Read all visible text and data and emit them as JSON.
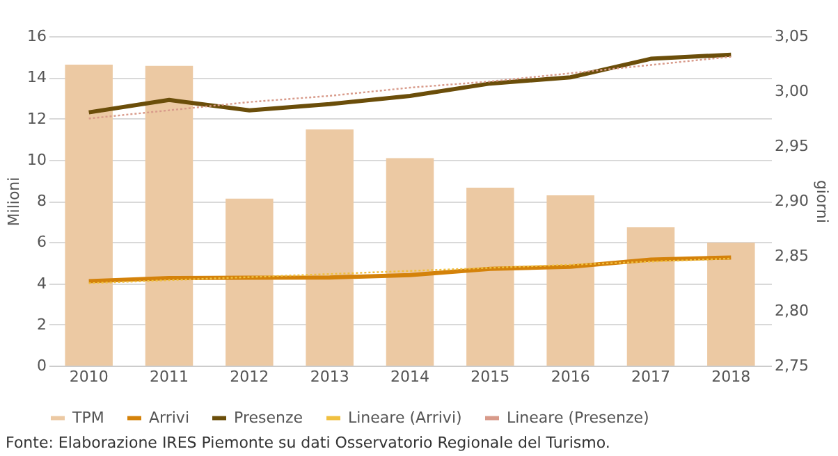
{
  "chart_data": {
    "type": "bar",
    "categories": [
      "2010",
      "2011",
      "2012",
      "2013",
      "2014",
      "2015",
      "2016",
      "2017",
      "2018"
    ],
    "series": [
      {
        "name": "TPM",
        "axis": "y2",
        "color": "#ecc9a3",
        "values": [
          3.024,
          3.023,
          2.902,
          2.965,
          2.939,
          2.912,
          2.905,
          2.876,
          2.862
        ]
      },
      {
        "name": "Arrivi",
        "type": "line",
        "color": "#d4820a",
        "line_style": "solid",
        "values": [
          4.1,
          4.25,
          4.27,
          4.28,
          4.4,
          4.7,
          4.8,
          5.15,
          5.25
        ]
      },
      {
        "name": "Presenze",
        "type": "line",
        "color": "#6b4e0a",
        "line_style": "solid",
        "values": [
          12.3,
          12.9,
          12.4,
          12.7,
          13.1,
          13.7,
          14.0,
          14.9,
          15.1
        ]
      },
      {
        "name": "Lineare (Arrivi)",
        "type": "line",
        "color": "#f0c040",
        "line_style": "dotted",
        "values": [
          4.0,
          4.15,
          4.3,
          4.45,
          4.6,
          4.75,
          4.9,
          5.05,
          5.2
        ]
      },
      {
        "name": "Lineare (Presenze)",
        "type": "line",
        "color": "#d89a8a",
        "line_style": "dotted",
        "values": [
          12.0,
          12.4,
          12.8,
          13.1,
          13.5,
          13.8,
          14.2,
          14.6,
          15.0
        ]
      }
    ],
    "ylabel": "Milioni",
    "y2label": "giorni",
    "ylim": [
      0,
      16
    ],
    "yticks": [
      0,
      2,
      4,
      6,
      8,
      10,
      12,
      14,
      16
    ],
    "y2lim": [
      2.75,
      3.05
    ],
    "y2ticks": [
      {
        "value": 2.75,
        "label": "2,75"
      },
      {
        "value": 2.8,
        "label": "2,80"
      },
      {
        "value": 2.85,
        "label": "2,85"
      },
      {
        "value": 2.9,
        "label": "2,90"
      },
      {
        "value": 2.95,
        "label": "2,95"
      },
      {
        "value": 3.0,
        "label": "3,00"
      },
      {
        "value": 3.05,
        "label": "3,05"
      }
    ],
    "grid": "y",
    "legend": "bottom",
    "marker": "none",
    "annotations": [
      "Fonte: Elaborazione IRES Piemonte su dati Osservatorio Regionale del Turismo."
    ]
  }
}
